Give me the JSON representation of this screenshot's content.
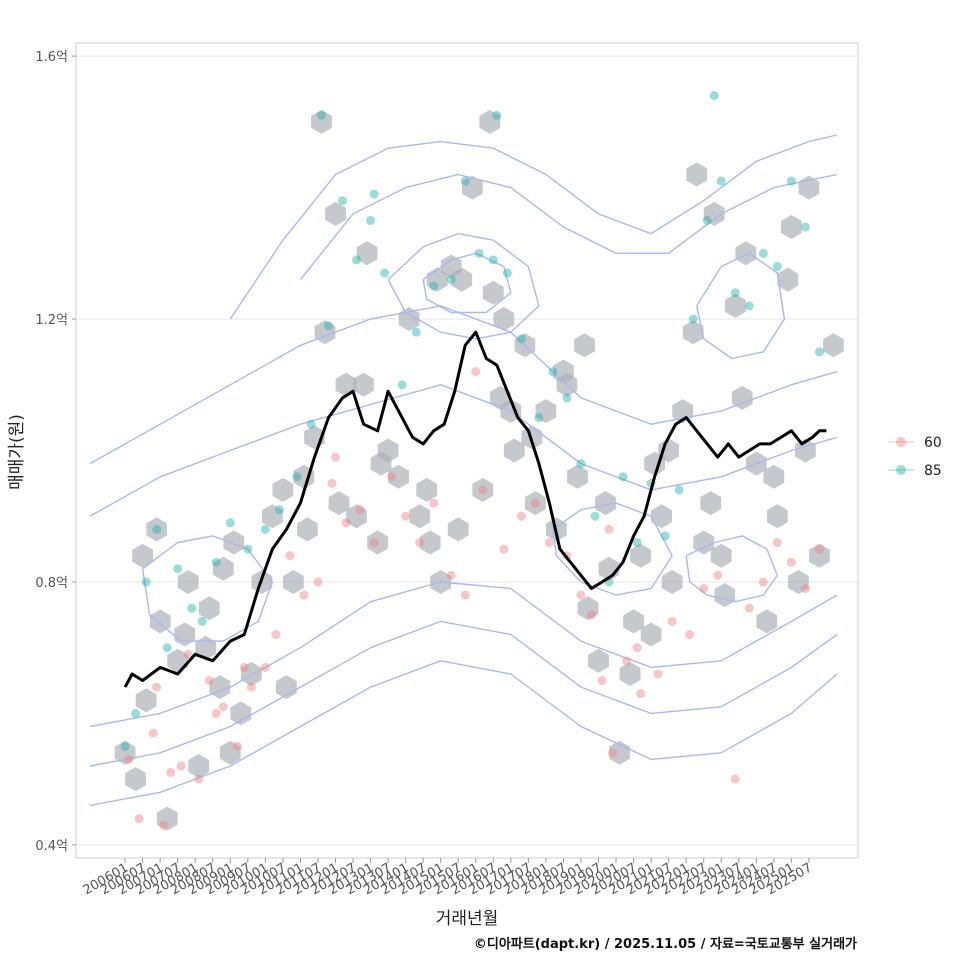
{
  "chart_data": {
    "type": "scatter",
    "xlabel": "거래년월",
    "ylabel": "매매가(원)",
    "caption": "©디아파트(dapt.kr) / 2025.11.05 / 자료=국토교통부 실거래가",
    "ylim": [
      0.38,
      1.62
    ],
    "y_ticks": [
      {
        "value": 0.4,
        "label": "0.4억"
      },
      {
        "value": 0.8,
        "label": "0.8억"
      },
      {
        "value": 1.2,
        "label": "1.2억"
      },
      {
        "value": 1.6,
        "label": "1.6억"
      }
    ],
    "x_range": [
      2004.6,
      2026.9
    ],
    "x_ticks": [
      "200601",
      "200607",
      "200701",
      "200707",
      "200801",
      "200807",
      "200901",
      "200907",
      "201001",
      "201007",
      "201101",
      "201107",
      "201201",
      "201207",
      "201301",
      "201307",
      "201401",
      "201407",
      "201501",
      "201507",
      "201601",
      "201607",
      "201701",
      "201707",
      "201801",
      "201807",
      "201901",
      "201907",
      "202001",
      "202007",
      "202101",
      "202107",
      "202201",
      "202207",
      "202301",
      "202307",
      "202401",
      "202407",
      "202501",
      "202507"
    ],
    "legend": {
      "position": "right",
      "entries": [
        {
          "label": "60",
          "color": "#f08080"
        },
        {
          "label": "85",
          "color": "#20b2aa"
        }
      ]
    },
    "colors": {
      "hex_fill": "#aeb3b8",
      "contour": "#a9b9f0",
      "trend_line": "#000000",
      "series_60": "#f08080",
      "series_85": "#20b2aa",
      "grid": "#e6e6e6",
      "panel_border": "#cccccc"
    },
    "trend_line": {
      "name": "moving average",
      "x": [
        2006.0,
        2006.2,
        2006.5,
        2007.0,
        2007.5,
        2008.0,
        2008.5,
        2009.0,
        2009.4,
        2009.8,
        2010.2,
        2010.6,
        2011.0,
        2011.4,
        2011.8,
        2012.2,
        2012.5,
        2012.8,
        2013.2,
        2013.5,
        2013.8,
        2014.2,
        2014.5,
        2014.8,
        2015.1,
        2015.4,
        2015.7,
        2016.0,
        2016.3,
        2016.6,
        2016.9,
        2017.2,
        2017.5,
        2017.8,
        2018.1,
        2018.4,
        2018.7,
        2019.0,
        2019.3,
        2019.6,
        2019.9,
        2020.2,
        2020.5,
        2020.8,
        2021.1,
        2021.4,
        2021.7,
        2022.0,
        2022.3,
        2022.6,
        2022.9,
        2023.2,
        2023.5,
        2023.8,
        2024.1,
        2024.4,
        2024.7,
        2025.0,
        2025.3,
        2025.6,
        2025.8,
        2026.0
      ],
      "y": [
        0.64,
        0.66,
        0.65,
        0.67,
        0.66,
        0.69,
        0.68,
        0.71,
        0.72,
        0.79,
        0.85,
        0.88,
        0.92,
        0.99,
        1.05,
        1.08,
        1.09,
        1.04,
        1.03,
        1.09,
        1.06,
        1.02,
        1.01,
        1.03,
        1.04,
        1.09,
        1.16,
        1.18,
        1.14,
        1.13,
        1.09,
        1.05,
        1.03,
        0.98,
        0.92,
        0.85,
        0.83,
        0.81,
        0.79,
        0.8,
        0.81,
        0.83,
        0.87,
        0.9,
        0.96,
        1.01,
        1.04,
        1.05,
        1.03,
        1.01,
        0.99,
        1.01,
        0.99,
        1.0,
        1.01,
        1.01,
        1.02,
        1.03,
        1.01,
        1.02,
        1.03,
        1.03
      ]
    },
    "series": [
      {
        "name": "60",
        "x": [
          2006.1,
          2006.4,
          2006.8,
          2007.1,
          2007.3,
          2007.6,
          2008.1,
          2008.4,
          2008.8,
          2009.2,
          2009.6,
          2010.0,
          2010.3,
          2010.7,
          2011.1,
          2011.5,
          2011.9,
          2012.3,
          2012.7,
          2013.1,
          2013.6,
          2014.0,
          2014.4,
          2014.8,
          2015.3,
          2015.7,
          2016.2,
          2016.8,
          2017.3,
          2017.7,
          2018.1,
          2018.6,
          2019.0,
          2019.3,
          2019.6,
          2019.9,
          2020.3,
          2020.7,
          2021.2,
          2021.6,
          2022.1,
          2022.5,
          2022.9,
          2023.4,
          2023.8,
          2024.2,
          2024.6,
          2025.0,
          2025.4,
          2025.8,
          2006.9,
          2007.8,
          2008.6,
          2009.4,
          2012.0,
          2016.0,
          2019.8,
          2020.6
        ],
        "y": [
          0.53,
          0.44,
          0.57,
          0.43,
          0.51,
          0.52,
          0.5,
          0.65,
          0.61,
          0.55,
          0.64,
          0.67,
          0.72,
          0.84,
          0.78,
          0.8,
          0.95,
          0.89,
          0.91,
          0.86,
          0.96,
          0.9,
          0.86,
          0.92,
          0.81,
          0.78,
          0.94,
          0.85,
          0.9,
          0.92,
          0.86,
          0.84,
          0.78,
          0.75,
          0.65,
          0.54,
          0.68,
          0.63,
          0.66,
          0.74,
          0.72,
          0.79,
          0.81,
          0.5,
          0.76,
          0.8,
          0.86,
          0.83,
          0.79,
          0.85,
          0.64,
          0.69,
          0.6,
          0.67,
          0.99,
          1.12,
          0.88,
          0.7
        ]
      },
      {
        "name": "85",
        "x": [
          2006.0,
          2006.3,
          2006.6,
          2006.9,
          2007.2,
          2007.5,
          2007.9,
          2008.2,
          2008.6,
          2009.0,
          2009.5,
          2010.0,
          2010.4,
          2010.9,
          2011.3,
          2011.8,
          2012.2,
          2012.6,
          2013.0,
          2013.4,
          2013.9,
          2014.3,
          2014.8,
          2015.3,
          2015.7,
          2016.1,
          2016.5,
          2016.9,
          2017.3,
          2017.8,
          2018.2,
          2018.6,
          2019.0,
          2019.4,
          2019.8,
          2020.2,
          2020.6,
          2021.0,
          2021.4,
          2021.8,
          2022.2,
          2022.6,
          2023.0,
          2023.4,
          2023.8,
          2024.2,
          2024.6,
          2025.0,
          2025.4,
          2025.8,
          2011.6,
          2013.1,
          2016.6,
          2022.8
        ],
        "y": [
          0.55,
          0.6,
          0.8,
          0.88,
          0.7,
          0.82,
          0.76,
          0.74,
          0.83,
          0.89,
          0.85,
          0.88,
          0.91,
          0.96,
          1.04,
          1.19,
          1.38,
          1.29,
          1.35,
          1.27,
          1.1,
          1.18,
          1.25,
          1.26,
          1.41,
          1.3,
          1.29,
          1.27,
          1.17,
          1.05,
          1.12,
          1.08,
          0.98,
          0.9,
          0.8,
          0.96,
          0.86,
          0.95,
          0.87,
          0.94,
          1.2,
          1.35,
          1.41,
          1.24,
          1.22,
          1.3,
          1.28,
          1.41,
          1.34,
          1.15,
          1.51,
          1.39,
          1.51,
          1.54
        ]
      }
    ],
    "hexbins": {
      "x": [
        2006.0,
        2006.3,
        2006.6,
        2006.9,
        2007.2,
        2007.5,
        2007.8,
        2008.1,
        2008.4,
        2008.7,
        2009.0,
        2009.3,
        2009.6,
        2009.9,
        2010.2,
        2010.5,
        2010.8,
        2011.1,
        2011.4,
        2011.7,
        2012.0,
        2012.3,
        2012.6,
        2012.9,
        2013.2,
        2013.5,
        2013.8,
        2014.1,
        2014.4,
        2014.7,
        2015.0,
        2015.3,
        2015.6,
        2015.9,
        2016.2,
        2016.5,
        2016.8,
        2017.1,
        2017.4,
        2017.7,
        2018.0,
        2018.3,
        2018.6,
        2018.9,
        2019.2,
        2019.5,
        2019.8,
        2020.1,
        2020.4,
        2020.7,
        2021.0,
        2021.3,
        2021.6,
        2021.9,
        2022.2,
        2022.5,
        2022.8,
        2023.1,
        2023.4,
        2023.7,
        2024.0,
        2024.3,
        2024.6,
        2024.9,
        2025.2,
        2025.5,
        2025.8,
        2006.5,
        2007.0,
        2007.7,
        2008.3,
        2009.1,
        2010.6,
        2011.2,
        2012.1,
        2013.3,
        2014.6,
        2015.5,
        2016.7,
        2017.6,
        2018.5,
        2019.7,
        2020.5,
        2021.5,
        2022.7,
        2023.6,
        2024.5,
        2025.4,
        2008.8,
        2012.8,
        2014.9,
        2017.0,
        2019.1,
        2021.1,
        2023.0,
        2025.0,
        2011.6,
        2016.4,
        2022.3,
        2026.2
      ],
      "y": [
        0.54,
        0.5,
        0.62,
        0.88,
        0.44,
        0.68,
        0.8,
        0.52,
        0.76,
        0.64,
        0.54,
        0.6,
        0.66,
        0.8,
        0.9,
        0.94,
        0.8,
        0.96,
        1.02,
        1.18,
        1.36,
        1.1,
        0.9,
        1.3,
        0.86,
        1.0,
        0.96,
        1.2,
        0.9,
        0.86,
        0.8,
        1.28,
        1.26,
        1.4,
        0.94,
        1.24,
        1.2,
        1.0,
        1.16,
        0.92,
        1.06,
        0.88,
        1.1,
        0.96,
        0.76,
        0.68,
        0.82,
        0.54,
        0.66,
        0.84,
        0.72,
        0.9,
        0.8,
        1.06,
        1.18,
        0.86,
        1.36,
        0.78,
        1.22,
        1.3,
        0.98,
        0.74,
        0.9,
        1.26,
        0.8,
        1.4,
        0.84,
        0.84,
        0.74,
        0.72,
        0.7,
        0.86,
        0.64,
        0.88,
        0.92,
        0.98,
        0.94,
        0.88,
        1.08,
        1.02,
        1.12,
        0.92,
        0.74,
        1.0,
        0.92,
        1.08,
        0.96,
        1.0,
        0.82,
        1.1,
        1.26,
        1.06,
        1.16,
        0.98,
        0.84,
        1.34,
        1.5,
        1.5,
        1.42,
        1.16
      ]
    },
    "contours": [
      {
        "x": [
          2005.0,
          2007.0,
          2009.0,
          2011.0,
          2013.0,
          2015.0,
          2017.0,
          2019.0,
          2021.0,
          2023.0,
          2025.0,
          2026.3
        ],
        "y": [
          0.46,
          0.48,
          0.52,
          0.58,
          0.64,
          0.68,
          0.66,
          0.58,
          0.53,
          0.54,
          0.6,
          0.66
        ]
      },
      {
        "x": [
          2005.0,
          2007.0,
          2009.0,
          2011.0,
          2013.0,
          2015.0,
          2017.0,
          2019.0,
          2021.0,
          2023.0,
          2025.0,
          2026.3
        ],
        "y": [
          0.52,
          0.54,
          0.58,
          0.64,
          0.7,
          0.74,
          0.72,
          0.64,
          0.6,
          0.61,
          0.67,
          0.72
        ]
      },
      {
        "x": [
          2005.0,
          2007.0,
          2009.0,
          2011.0,
          2013.0,
          2015.0,
          2017.0,
          2019.0,
          2021.0,
          2023.0,
          2025.0,
          2026.3
        ],
        "y": [
          0.58,
          0.6,
          0.64,
          0.7,
          0.77,
          0.8,
          0.79,
          0.71,
          0.67,
          0.68,
          0.74,
          0.78
        ]
      },
      {
        "x": [
          2005.0,
          2007.0,
          2009.0,
          2011.0,
          2013.0,
          2015.0,
          2017.0,
          2019.0,
          2021.0,
          2023.0,
          2025.0,
          2026.3
        ],
        "y": [
          0.9,
          0.96,
          1.0,
          1.04,
          1.07,
          1.1,
          1.06,
          0.98,
          0.94,
          0.96,
          1.0,
          1.02
        ]
      },
      {
        "x": [
          2005.0,
          2007.0,
          2009.0,
          2011.0,
          2013.0,
          2015.0,
          2017.0,
          2019.0,
          2021.0,
          2023.0,
          2025.0,
          2026.3
        ],
        "y": [
          0.98,
          1.04,
          1.1,
          1.16,
          1.2,
          1.22,
          1.18,
          1.08,
          1.04,
          1.06,
          1.1,
          1.12
        ]
      },
      {
        "x": [
          2009.0,
          2010.5,
          2012.0,
          2013.5,
          2015.0,
          2016.5,
          2018.0,
          2019.5,
          2021.0,
          2022.5,
          2024.0,
          2025.5,
          2026.3
        ],
        "y": [
          1.2,
          1.32,
          1.42,
          1.46,
          1.47,
          1.46,
          1.42,
          1.36,
          1.33,
          1.38,
          1.44,
          1.47,
          1.48
        ]
      },
      {
        "x": [
          2011.0,
          2012.5,
          2014.0,
          2015.5,
          2017.0,
          2018.5,
          2020.0,
          2021.5,
          2023.0,
          2024.5,
          2026.3
        ],
        "y": [
          1.26,
          1.36,
          1.4,
          1.42,
          1.4,
          1.34,
          1.3,
          1.3,
          1.36,
          1.4,
          1.42
        ]
      },
      {
        "x": [
          2013.5,
          2014.5,
          2015.5,
          2016.5,
          2017.5,
          2017.8,
          2017.0,
          2016.0,
          2015.0,
          2014.0,
          2013.5
        ],
        "y": [
          1.26,
          1.31,
          1.33,
          1.32,
          1.28,
          1.22,
          1.18,
          1.17,
          1.18,
          1.21,
          1.26
        ]
      },
      {
        "x": [
          2014.5,
          2015.3,
          2016.0,
          2016.8,
          2017.0,
          2016.3,
          2015.3,
          2014.6,
          2014.5
        ],
        "y": [
          1.26,
          1.29,
          1.3,
          1.28,
          1.24,
          1.21,
          1.21,
          1.23,
          1.26
        ]
      },
      {
        "x": [
          2018.2,
          2019.0,
          2020.0,
          2021.0,
          2021.6,
          2021.0,
          2020.0,
          2019.0,
          2018.3,
          2018.2
        ],
        "y": [
          0.88,
          0.91,
          0.92,
          0.9,
          0.84,
          0.79,
          0.78,
          0.8,
          0.84,
          0.88
        ]
      },
      {
        "x": [
          2022.0,
          2022.8,
          2023.6,
          2024.3,
          2024.6,
          2024.2,
          2023.4,
          2022.6,
          2022.1,
          2022.0
        ],
        "y": [
          0.84,
          0.86,
          0.87,
          0.85,
          0.81,
          0.78,
          0.77,
          0.78,
          0.8,
          0.84
        ]
      },
      {
        "x": [
          2022.3,
          2023.0,
          2023.8,
          2024.6,
          2024.8,
          2024.2,
          2023.3,
          2022.5,
          2022.3
        ],
        "y": [
          1.22,
          1.28,
          1.3,
          1.27,
          1.2,
          1.15,
          1.14,
          1.17,
          1.22
        ]
      },
      {
        "x": [
          2006.5,
          2007.5,
          2008.5,
          2009.5,
          2010.2,
          2009.8,
          2008.8,
          2007.6,
          2006.7,
          2006.5
        ],
        "y": [
          0.82,
          0.86,
          0.87,
          0.85,
          0.8,
          0.74,
          0.71,
          0.71,
          0.75,
          0.82
        ]
      }
    ]
  }
}
